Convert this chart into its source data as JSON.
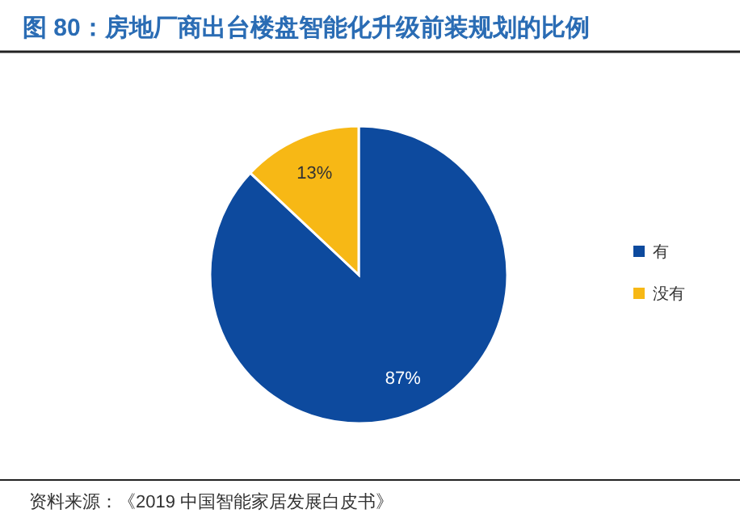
{
  "chart_data": {
    "type": "pie",
    "title": "图 80：房地厂商出台楼盘智能化升级前装规划的比例",
    "categories": [
      "有",
      "没有"
    ],
    "values": [
      87,
      13
    ],
    "colors": [
      "#0d4a9e",
      "#f7b815"
    ],
    "value_labels": [
      "87%",
      "13%"
    ],
    "legend": "right",
    "annotations": [
      "资料来源：《2019 中国智能家居发展白皮书》"
    ]
  }
}
